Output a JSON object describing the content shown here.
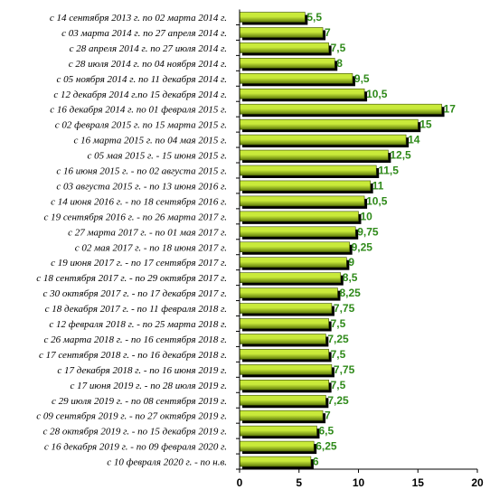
{
  "chart_data": {
    "type": "bar",
    "orientation": "horizontal",
    "categories": [
      "с 14 сентября 2013 г. по 02 марта 2014 г.",
      "с 03 марта 2014 г. по 27 апреля 2014 г.",
      "с 28 апреля 2014 г. по 27 июля 2014 г.",
      "с 28 июля 2014 г. по 04 ноября 2014 г.",
      "с 05 ноября 2014 г. по 11 декабря 2014 г.",
      "с 12 декабря 2014 г.по 15 декабря 2014 г.",
      "с 16 декабря 2014 г. по 01 февраля 2015 г.",
      "с 02 февраля 2015 г. по 15 марта 2015 г.",
      "с 16 марта 2015 г. по 04 мая 2015 г.",
      "с 05 мая 2015 г. - 15 июня 2015 г.",
      "с 16 июня 2015 г. - по 02 августа 2015 г.",
      "с 03 августа 2015 г. - по 13 июня 2016 г.",
      "с 14 июня 2016 г. - по 18 сентября 2016 г.",
      "с 19 сентября 2016 г. - по 26 марта 2017 г.",
      "с 27 марта 2017 г. - по 01 мая 2017 г.",
      "с 02 мая 2017 г. - по 18 июня 2017 г.",
      "с 19 июня 2017 г. - по 17 сентября 2017 г.",
      "с 18 сентября 2017 г. - по 29 октября 2017 г.",
      "с 30 октября 2017 г. - по 17 декабря 2017 г.",
      "с 18 декабря 2017 г. - по 11 февраля 2018 г.",
      "с 12 февраля 2018 г. - по 25 марта 2018 г.",
      "с 26 марта 2018 г. - по 16 сентября 2018 г.",
      "с 17 сентября 2018 г. - по 16 декабря 2018 г.",
      "с 17 декабря 2018 г. - по 16 июня 2019 г.",
      "с 17 июня 2019 г. - по 28 июля 2019 г.",
      "с 29 июля 2019 г. - по 08 сентября 2019 г.",
      "с 09 сентября 2019 г. - по 27 октября 2019 г.",
      "с 28 октября 2019 г. - по 15 декабря 2019 г.",
      "с 16 декабря 2019 г. - по 09 февраля 2020 г.",
      "с 10 февраля 2020 г. - по н.в."
    ],
    "values": [
      5.5,
      7,
      7.5,
      8,
      9.5,
      10.5,
      17,
      15,
      14,
      12.5,
      11.5,
      11,
      10.5,
      10,
      9.75,
      9.25,
      9,
      8.5,
      8.25,
      7.75,
      7.5,
      7.25,
      7.5,
      7.75,
      7.5,
      7.25,
      7,
      6.5,
      6.25,
      6
    ],
    "value_labels": [
      "5,5",
      "7",
      "7,5",
      "8",
      "9,5",
      "10,5",
      "17",
      "15",
      "14",
      "12,5",
      "11,5",
      "11",
      "10,5",
      "10",
      "9,75",
      "9,25",
      "9",
      "8,5",
      "8,25",
      "7,75",
      "7,5",
      "7,25",
      "7,5",
      "7,75",
      "7,5",
      "7,25",
      "7",
      "6,5",
      "6,25",
      "6"
    ],
    "xlim": [
      0,
      20
    ],
    "xticks": [
      0,
      5,
      10,
      15,
      20
    ],
    "grid": false,
    "legend": "none",
    "title": "",
    "xlabel": "",
    "ylabel": "",
    "colors": {
      "bar_fill_light": "#c9ea3a",
      "bar_fill_dark": "#5e7a0a",
      "bar_shadow": "#000000",
      "value_label": "#2f8a1a",
      "axis": "#000000"
    }
  }
}
